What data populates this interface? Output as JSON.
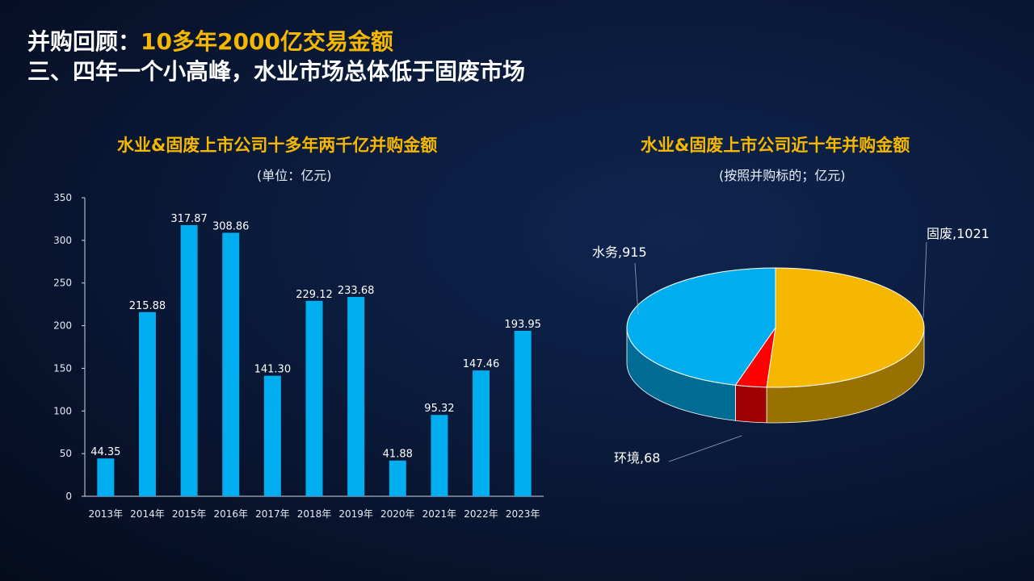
{
  "heading": {
    "line1_prefix": "并购回顾：",
    "line1_accent": "10多年2000亿交易金额",
    "line2": "三、四年一个小高峰，水业市场总体低于固废市场"
  },
  "colors": {
    "accent": "#f5b700",
    "bar": "#00aeef",
    "pie_gufei": "#f5b700",
    "pie_shuiwu": "#00aeef",
    "pie_huanjing": "#ff0000"
  },
  "chart_data": [
    {
      "type": "bar",
      "title": "水业&固废上市公司十多年两千亿并购金额",
      "subtitle": "(单位：亿元)",
      "categories": [
        "2013年",
        "2014年",
        "2015年",
        "2016年",
        "2017年",
        "2018年",
        "2019年",
        "2020年",
        "2021年",
        "2022年",
        "2023年"
      ],
      "values": [
        44.35,
        215.88,
        317.87,
        308.86,
        141.3,
        229.12,
        233.68,
        41.88,
        95.32,
        147.46,
        193.95
      ],
      "value_labels": [
        "44.35",
        "215.88",
        "317.87",
        "308.86",
        "141.30",
        "229.12",
        "233.68",
        "41.88",
        "95.32",
        "147.46",
        "193.95"
      ],
      "ylim": [
        0,
        350
      ],
      "yticks": [
        0,
        50,
        100,
        150,
        200,
        250,
        300,
        350
      ],
      "xlabel": "",
      "ylabel": "",
      "grid": false
    },
    {
      "type": "pie",
      "title": "水业&固废上市公司近十年并购金额",
      "subtitle": "(按照并购标的；亿元)",
      "slices": [
        {
          "name": "固废",
          "value": 1021,
          "label": "固废,1021"
        },
        {
          "name": "环境",
          "value": 68,
          "label": "环境,68"
        },
        {
          "name": "水务",
          "value": 915,
          "label": "水务,915"
        }
      ],
      "style": "3d"
    }
  ]
}
